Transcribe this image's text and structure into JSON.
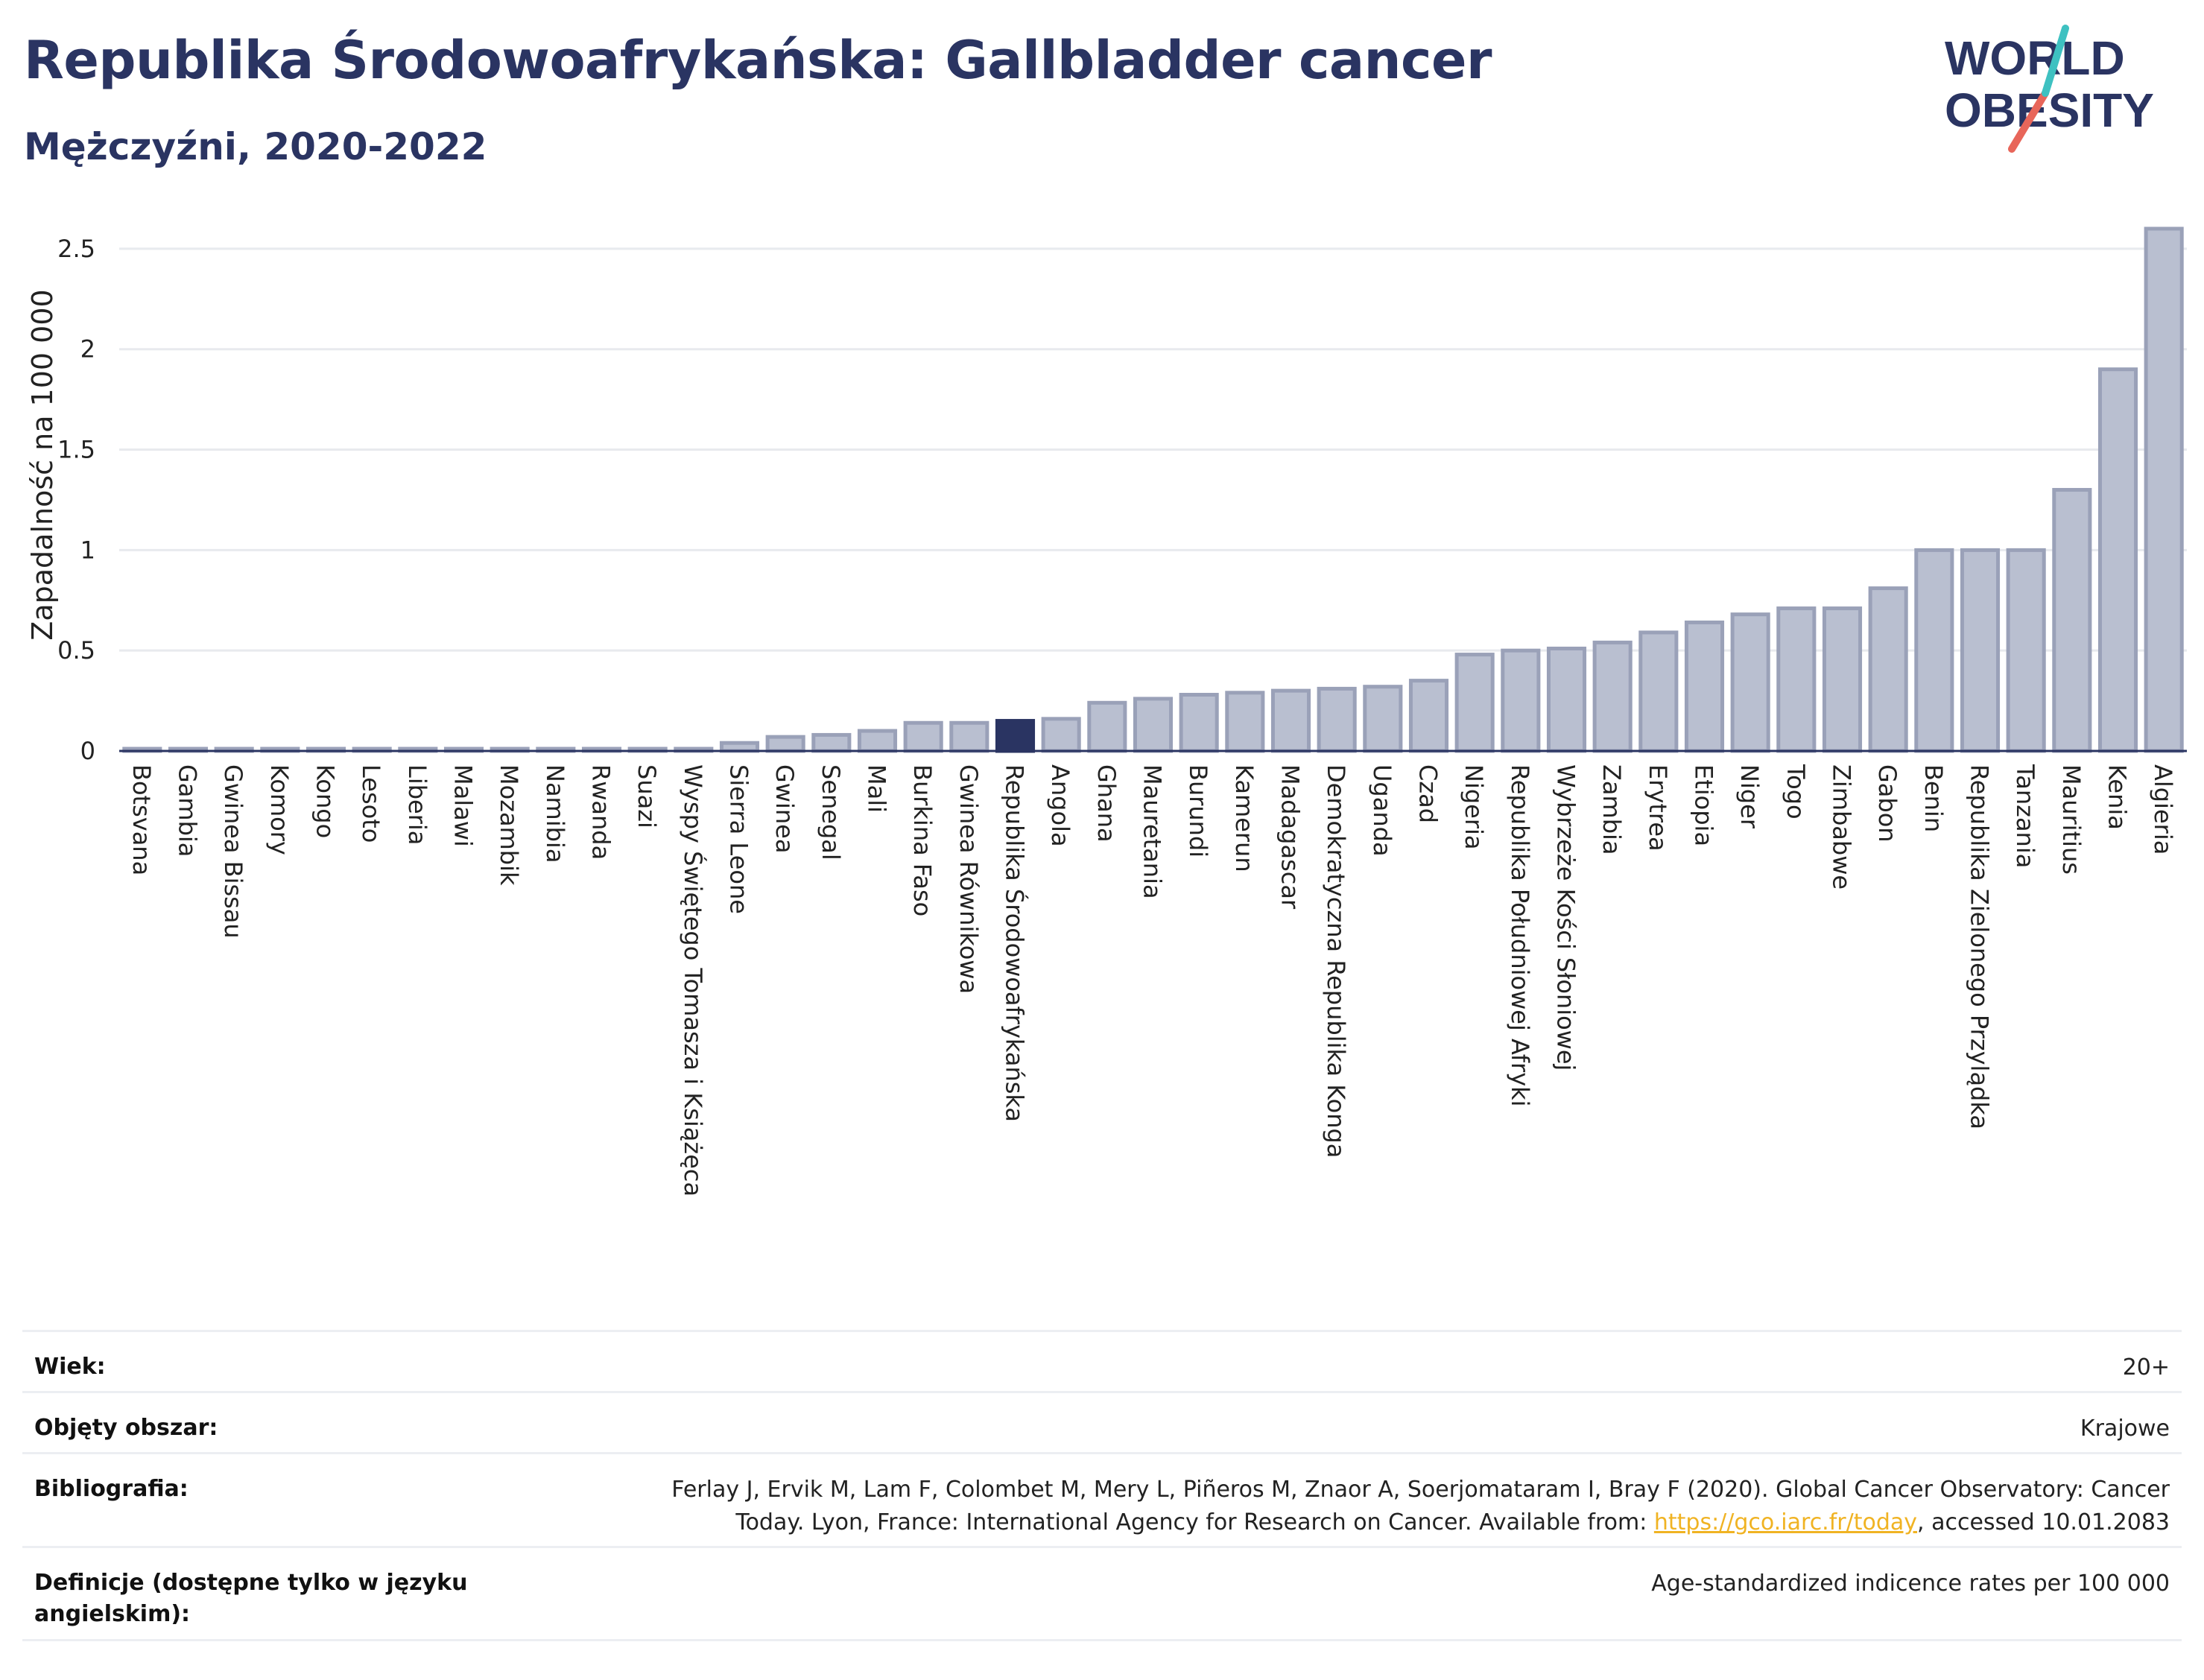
{
  "header": {
    "title": "Republika Środowoafrykańska: Gallbladder cancer",
    "subtitle": "Mężczyźni, 2020-2022"
  },
  "logo": {
    "line1": "WORLD",
    "line2": "OBESITY",
    "accent_teal": "#3ec1c1",
    "accent_red": "#e8665a",
    "color": "#2a3462"
  },
  "colors": {
    "bar": "#b9bfd0",
    "bar_stroke": "#9aa1b8",
    "highlight": "#2a3462",
    "grid": "#e8eaee",
    "axis": "#2a3462"
  },
  "chart_data": {
    "type": "bar",
    "ylabel": "Zapadalność na 100 000",
    "ylim": [
      0,
      2.7
    ],
    "yticks": [
      0,
      0.5,
      1,
      1.5,
      2,
      2.5
    ],
    "ytick_labels": [
      "0",
      "0.5",
      "1",
      "1.5",
      "2",
      "2.5"
    ],
    "highlight": "Republika Środowoafrykańska",
    "categories": [
      "Botsvana",
      "Gambia",
      "Gwinea Bissau",
      "Komory",
      "Kongo",
      "Lesoto",
      "Liberia",
      "Malawi",
      "Mozambik",
      "Namibia",
      "Rwanda",
      "Suazi",
      "Wyspy Świętego Tomasza i Książęca",
      "Sierra Leone",
      "Gwinea",
      "Senegal",
      "Mali",
      "Burkina Faso",
      "Gwinea Równikowa",
      "Republika Środowoafrykańska",
      "Angola",
      "Ghana",
      "Mauretania",
      "Burundi",
      "Kamerun",
      "Madagascar",
      "Demokratyczna Republika Konga",
      "Uganda",
      "Czad",
      "Nigeria",
      "Republika Południowej Afryki",
      "Wybrzeże Kości Słoniowej",
      "Zambia",
      "Erytrea",
      "Etiopia",
      "Niger",
      "Togo",
      "Zimbabwe",
      "Gabon",
      "Benin",
      "Republika Zielonego Przylądka",
      "Tanzania",
      "Mauritius",
      "Kenia",
      "Algieria"
    ],
    "values": [
      0.01,
      0.01,
      0.01,
      0.01,
      0.01,
      0.01,
      0.01,
      0.01,
      0.01,
      0.01,
      0.01,
      0.01,
      0.01,
      0.04,
      0.07,
      0.08,
      0.1,
      0.14,
      0.14,
      0.15,
      0.16,
      0.24,
      0.26,
      0.28,
      0.29,
      0.3,
      0.31,
      0.32,
      0.35,
      0.48,
      0.5,
      0.51,
      0.54,
      0.59,
      0.64,
      0.68,
      0.71,
      0.71,
      0.81,
      1.0,
      1.0,
      1.0,
      1.3,
      1.9,
      2.6
    ]
  },
  "meta": {
    "age_label": "Wiek:",
    "age_value": "20+",
    "coverage_label": "Objęty obszar:",
    "coverage_value": "Krajowe",
    "biblio_label": "Bibliografia:",
    "biblio_text_1": "Ferlay J, Ervik M, Lam F, Colombet M, Mery L, Piñeros M, Znaor A, Soerjomataram I, Bray F (2020). Global Cancer Observatory: Cancer",
    "biblio_text_2": "Today. Lyon, France: International Agency for Research on Cancer. Available from: ",
    "biblio_link": "https://gco.iarc.fr/today",
    "biblio_text_3": ", accessed 10.01.2083",
    "definitions_label": "Definicje (dostępne tylko w języku angielskim):",
    "definitions_value": "Age-standardized indicence rates per 100 000"
  }
}
